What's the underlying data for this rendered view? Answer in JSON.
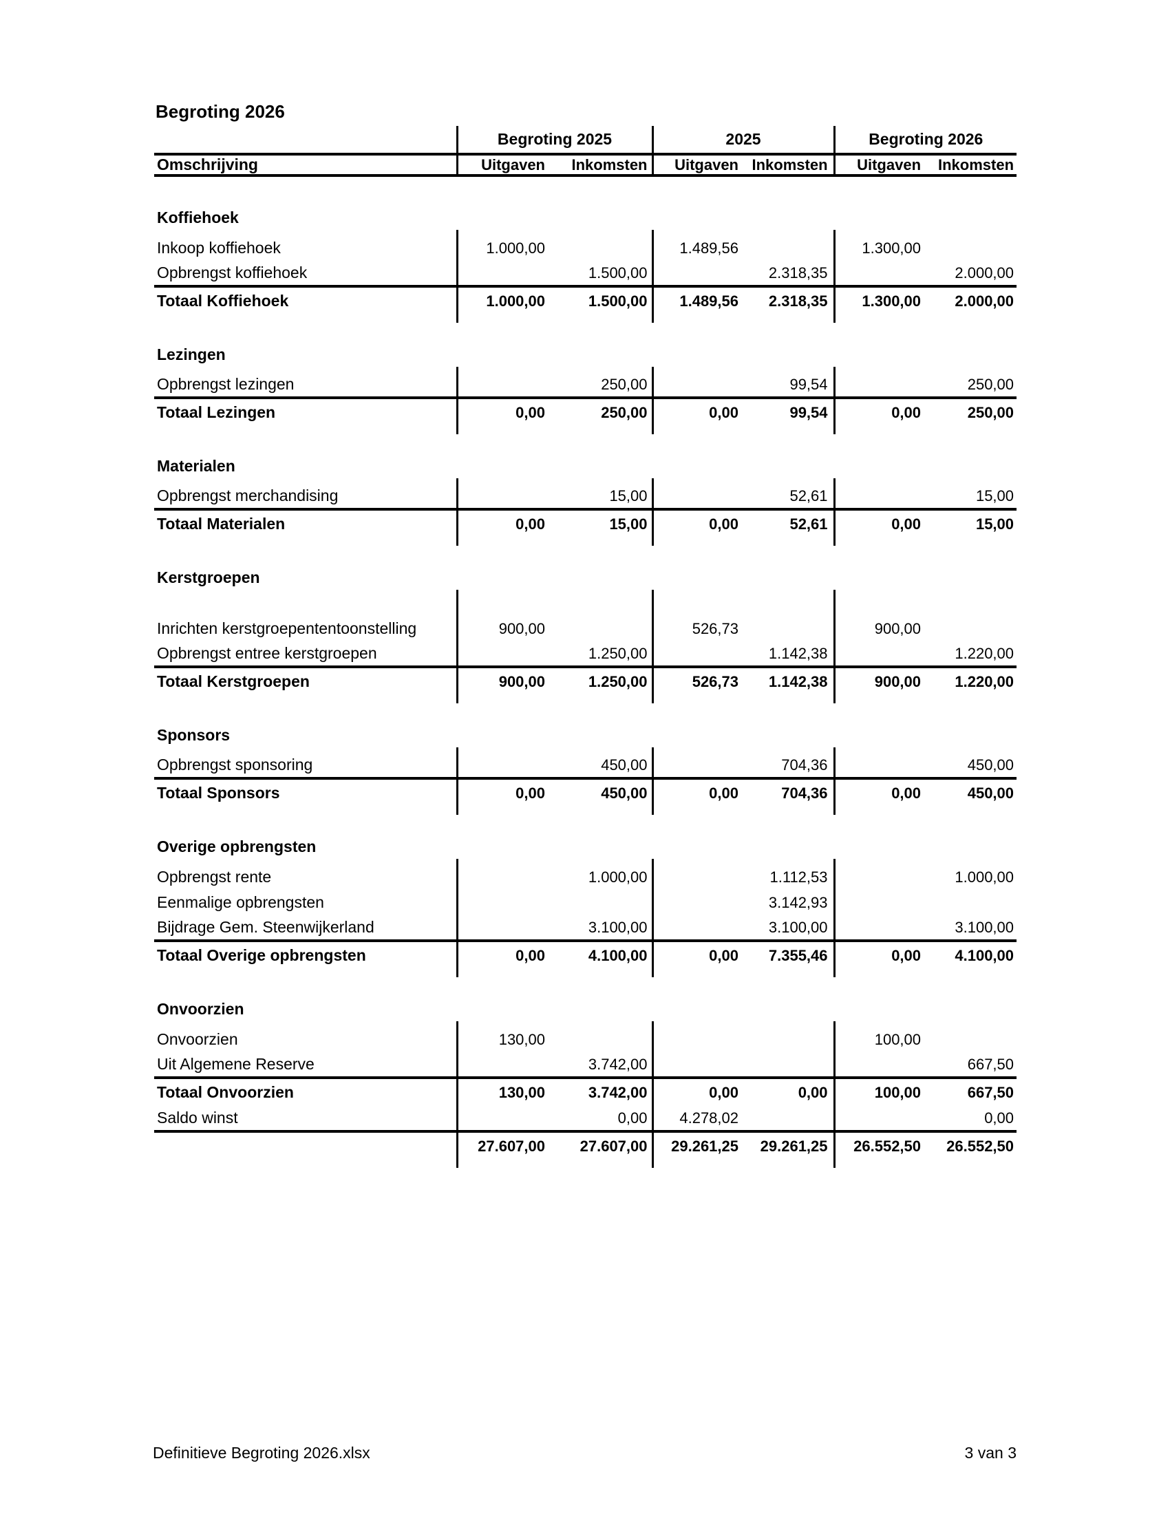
{
  "title": "Begroting 2026",
  "footer": {
    "filename": "Definitieve Begroting 2026.xlsx",
    "page": "3 van 3"
  },
  "table": {
    "corner_label": "Omschrijving",
    "groups": [
      "Begroting 2025",
      "2025",
      "Begroting 2026"
    ],
    "sub_headers": [
      "Uitgaven",
      "Inkomsten"
    ],
    "sections": [
      {
        "name": "Koffiehoek",
        "rows": [
          {
            "label": "Inkoop koffiehoek",
            "values": [
              "1.000,00",
              "",
              "1.489,56",
              "",
              "1.300,00",
              ""
            ]
          },
          {
            "label": "Opbrengst koffiehoek",
            "values": [
              "",
              "1.500,00",
              "",
              "2.318,35",
              "",
              "2.000,00"
            ]
          }
        ],
        "total": {
          "label": "Totaal Koffiehoek",
          "values": [
            "1.000,00",
            "1.500,00",
            "1.489,56",
            "2.318,35",
            "1.300,00",
            "2.000,00"
          ]
        }
      },
      {
        "name": "Lezingen",
        "rows": [
          {
            "label": "Opbrengst lezingen",
            "values": [
              "",
              "250,00",
              "",
              "99,54",
              "",
              "250,00"
            ]
          }
        ],
        "total": {
          "label": "Totaal Lezingen",
          "values": [
            "0,00",
            "250,00",
            "0,00",
            "99,54",
            "0,00",
            "250,00"
          ]
        }
      },
      {
        "name": "Materialen",
        "rows": [
          {
            "label": "Opbrengst merchandising",
            "values": [
              "",
              "15,00",
              "",
              "52,61",
              "",
              "15,00"
            ]
          }
        ],
        "total": {
          "label": "Totaal Materialen",
          "values": [
            "0,00",
            "15,00",
            "0,00",
            "52,61",
            "0,00",
            "15,00"
          ]
        }
      },
      {
        "name": "Kerstgroepen",
        "blank_row_after_header": true,
        "rows": [
          {
            "label": "Inrichten kerstgroepententoonstelling",
            "values": [
              "900,00",
              "",
              "526,73",
              "",
              "900,00",
              ""
            ]
          },
          {
            "label": "Opbrengst entree kerstgroepen",
            "values": [
              "",
              "1.250,00",
              "",
              "1.142,38",
              "",
              "1.220,00"
            ]
          }
        ],
        "total": {
          "label": "Totaal Kerstgroepen",
          "values": [
            "900,00",
            "1.250,00",
            "526,73",
            "1.142,38",
            "900,00",
            "1.220,00"
          ]
        }
      },
      {
        "name": "Sponsors",
        "rows": [
          {
            "label": "Opbrengst sponsoring",
            "values": [
              "",
              "450,00",
              "",
              "704,36",
              "",
              "450,00"
            ]
          }
        ],
        "total": {
          "label": "Totaal Sponsors",
          "values": [
            "0,00",
            "450,00",
            "0,00",
            "704,36",
            "0,00",
            "450,00"
          ]
        }
      },
      {
        "name": "Overige opbrengsten",
        "rows": [
          {
            "label": "Opbrengst rente",
            "values": [
              "",
              "1.000,00",
              "",
              "1.112,53",
              "",
              "1.000,00"
            ]
          },
          {
            "label": "Eenmalige opbrengsten",
            "values": [
              "",
              "",
              "",
              "3.142,93",
              "",
              ""
            ]
          },
          {
            "label": "Bijdrage Gem. Steenwijkerland",
            "values": [
              "",
              "3.100,00",
              "",
              "3.100,00",
              "",
              "3.100,00"
            ]
          }
        ],
        "total": {
          "label": "Totaal Overige opbrengsten",
          "values": [
            "0,00",
            "4.100,00",
            "0,00",
            "7.355,46",
            "0,00",
            "4.100,00"
          ]
        }
      },
      {
        "name": "Onvoorzien",
        "rows": [
          {
            "label": "Onvoorzien",
            "values": [
              "130,00",
              "",
              "",
              "",
              "100,00",
              ""
            ]
          },
          {
            "label": "Uit Algemene Reserve",
            "values": [
              "",
              "3.742,00",
              "",
              "",
              "",
              "667,50"
            ]
          }
        ],
        "total": {
          "label": "Totaal Onvoorzien",
          "values": [
            "130,00",
            "3.742,00",
            "0,00",
            "0,00",
            "100,00",
            "667,50"
          ]
        },
        "after_total_rows": [
          {
            "label": "Saldo winst",
            "values": [
              "",
              "0,00",
              "4.278,02",
              "",
              "",
              "0,00"
            ]
          }
        ]
      }
    ],
    "grand_total": [
      "27.607,00",
      "27.607,00",
      "29.261,25",
      "29.261,25",
      "26.552,50",
      "26.552,50"
    ]
  }
}
